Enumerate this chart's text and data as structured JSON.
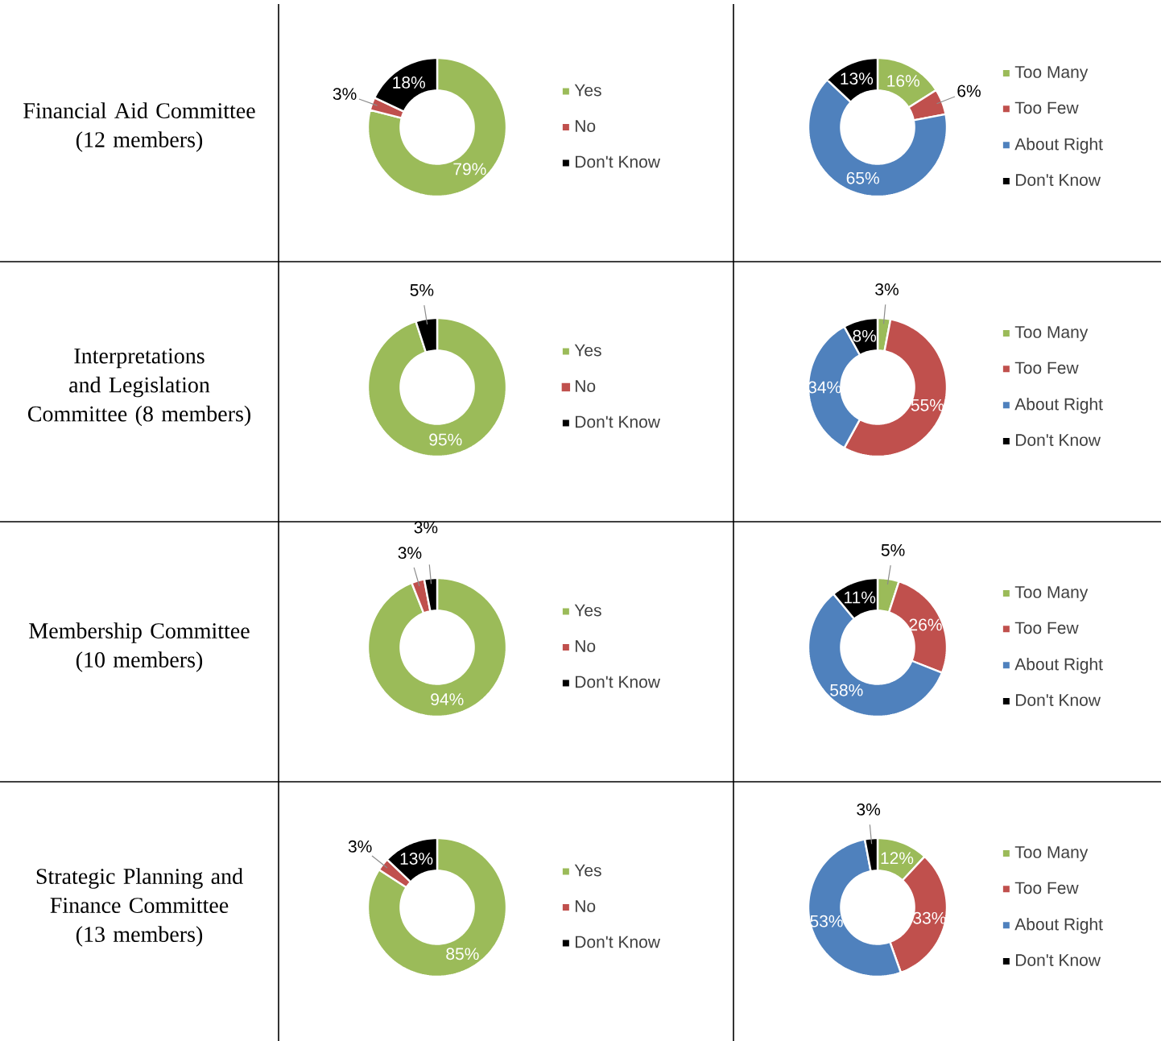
{
  "chart_data": [
    {
      "type": "other",
      "title": "Financial Aid Committee (12 members)"
    },
    {
      "type": "donut",
      "categories": [
        "Yes",
        "No",
        "Don't Know"
      ],
      "values": [
        79,
        3,
        18
      ],
      "colors": [
        "#9bbb59",
        "#c0504d",
        "#000000"
      ],
      "value_labels": [
        "79%",
        "3%",
        "18%"
      ],
      "legend": "right"
    },
    {
      "type": "donut",
      "categories": [
        "Too Many",
        "Too Few",
        "About Right",
        "Don't Know"
      ],
      "values": [
        16,
        6,
        65,
        13
      ],
      "colors": [
        "#9bbb59",
        "#c0504d",
        "#4f81bd",
        "#000000"
      ],
      "value_labels": [
        "16%",
        "6%",
        "65%",
        "13%"
      ],
      "legend": "right"
    },
    {
      "type": "other",
      "title": "Interpretations and Legislation Committee (8 members)"
    },
    {
      "type": "donut",
      "categories": [
        "Yes",
        "No",
        "Don't Know"
      ],
      "values": [
        95,
        0,
        5
      ],
      "colors": [
        "#9bbb59",
        "#c0504d",
        "#000000"
      ],
      "value_labels": [
        "95%",
        null,
        "5%"
      ],
      "legend": "right"
    },
    {
      "type": "donut",
      "categories": [
        "Too Many",
        "Too Few",
        "About Right",
        "Don't Know"
      ],
      "values": [
        3,
        55,
        34,
        8
      ],
      "colors": [
        "#9bbb59",
        "#c0504d",
        "#4f81bd",
        "#000000"
      ],
      "value_labels": [
        "3%",
        "55%",
        "34%",
        "8%"
      ],
      "legend": "right"
    },
    {
      "type": "other",
      "title": "Membership Committee (10 members)"
    },
    {
      "type": "donut",
      "categories": [
        "Yes",
        "No",
        "Don't Know"
      ],
      "values": [
        94,
        3,
        3
      ],
      "colors": [
        "#9bbb59",
        "#c0504d",
        "#000000"
      ],
      "value_labels": [
        "94%",
        "3%",
        "3%"
      ],
      "legend": "right"
    },
    {
      "type": "donut",
      "categories": [
        "Too Many",
        "Too Few",
        "About Right",
        "Don't Know"
      ],
      "values": [
        5,
        26,
        58,
        11
      ],
      "colors": [
        "#9bbb59",
        "#c0504d",
        "#4f81bd",
        "#000000"
      ],
      "value_labels": [
        "5%",
        "26%",
        "58%",
        "11%"
      ],
      "legend": "right"
    },
    {
      "type": "other",
      "title": "Strategic Planning and Finance Committee (13 members)"
    },
    {
      "type": "donut",
      "categories": [
        "Yes",
        "No",
        "Don't Know"
      ],
      "values": [
        85,
        3,
        13
      ],
      "colors": [
        "#9bbb59",
        "#c0504d",
        "#000000"
      ],
      "value_labels": [
        "85%",
        "3%",
        "13%"
      ],
      "legend": "right"
    },
    {
      "type": "donut",
      "categories": [
        "Too Many",
        "Too Few",
        "About Right",
        "Don't Know"
      ],
      "values": [
        12,
        33,
        53,
        3
      ],
      "colors": [
        "#9bbb59",
        "#c0504d",
        "#4f81bd",
        "#000000"
      ],
      "value_labels": [
        "12%",
        "33%",
        "53%",
        "3%"
      ],
      "legend": "right"
    }
  ]
}
